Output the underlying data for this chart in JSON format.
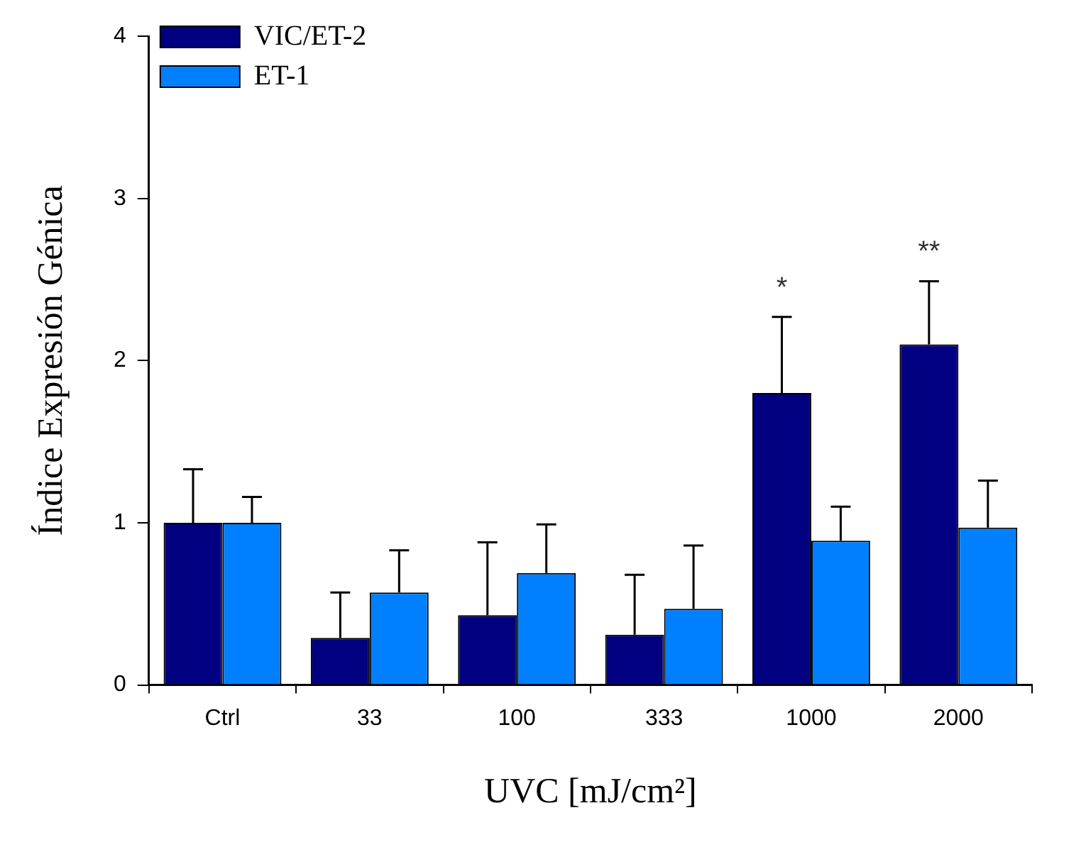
{
  "chart_data": {
    "type": "bar",
    "xlabel": "UVC [mJ/cm²]",
    "ylabel": "Índice Expresión Génica",
    "categories": [
      "Ctrl",
      "33",
      "100",
      "333",
      "1000",
      "2000"
    ],
    "series": [
      {
        "name": "VIC/ET-2",
        "color": "#000080",
        "values": [
          1.0,
          0.29,
          0.43,
          0.31,
          1.8,
          2.1
        ],
        "errors": [
          [
            1.0,
            1.33
          ],
          [
            0.29,
            0.57
          ],
          [
            0.43,
            0.88
          ],
          [
            0.31,
            0.68
          ],
          [
            1.8,
            2.27
          ],
          [
            2.1,
            2.49
          ]
        ]
      },
      {
        "name": "ET-1",
        "color": "#0080ff",
        "values": [
          1.0,
          0.57,
          0.69,
          0.47,
          0.89,
          0.97
        ],
        "errors": [
          [
            1.0,
            1.16
          ],
          [
            0.57,
            0.83
          ],
          [
            0.69,
            0.99
          ],
          [
            0.47,
            0.86
          ],
          [
            0.89,
            1.1
          ],
          [
            0.97,
            1.26
          ]
        ]
      }
    ],
    "ylim": [
      0,
      4
    ],
    "yticks": [
      0,
      1,
      2,
      3,
      4
    ],
    "grid": false,
    "legend": "top left",
    "annotations": [
      "*",
      "**"
    ]
  }
}
